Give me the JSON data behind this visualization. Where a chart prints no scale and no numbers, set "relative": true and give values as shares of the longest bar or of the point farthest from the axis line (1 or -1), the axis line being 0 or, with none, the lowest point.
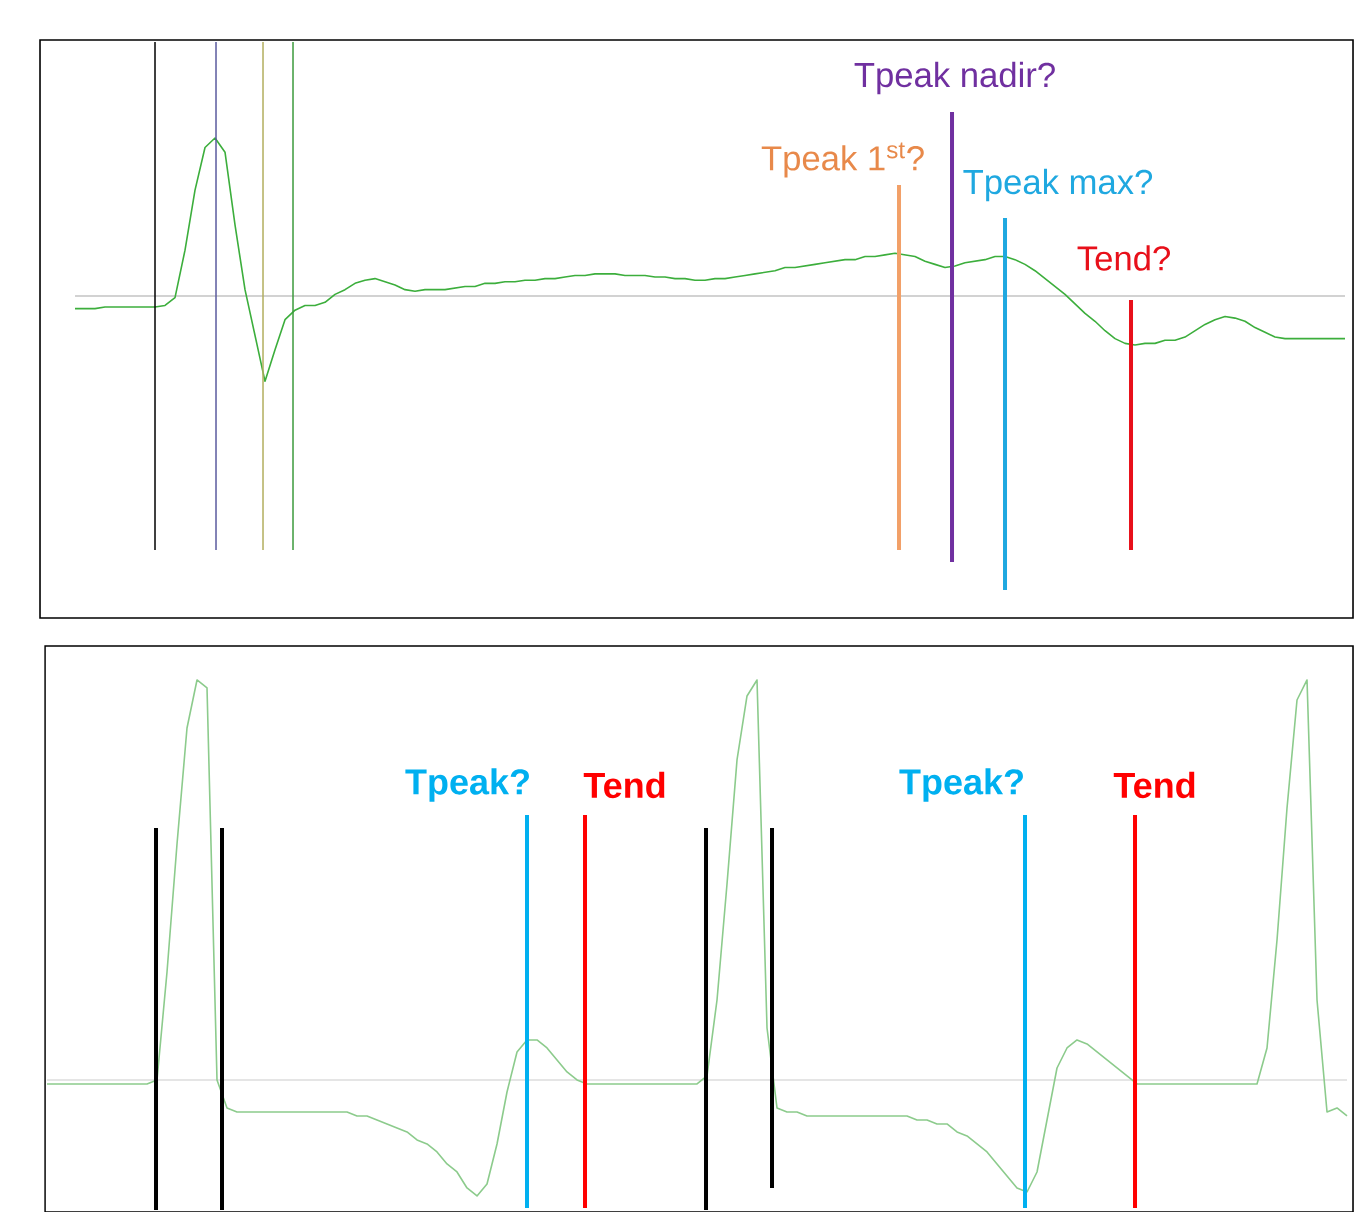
{
  "chart_data": [
    {
      "type": "line",
      "relative": true,
      "categories": [
        null,
        null,
        null,
        null,
        null,
        null,
        null,
        null,
        null,
        null,
        null,
        null,
        null,
        null,
        null,
        null,
        null,
        null,
        null,
        null,
        null,
        null,
        null,
        null,
        null,
        null,
        null,
        null,
        null,
        null,
        null,
        null,
        null,
        null,
        null,
        null,
        null,
        null,
        null,
        null,
        null,
        null,
        null,
        null,
        null,
        null,
        null,
        null,
        null,
        null,
        null,
        null,
        null,
        null,
        null,
        null,
        null,
        null,
        null,
        null,
        null,
        null,
        null,
        null,
        null,
        null,
        null,
        null,
        null,
        null,
        null,
        null,
        null,
        null,
        null,
        null,
        null,
        null,
        null,
        null,
        null,
        null,
        null,
        null,
        null,
        null,
        null,
        null,
        null,
        null,
        null,
        null,
        null,
        null,
        null,
        null,
        null,
        null,
        null,
        null,
        null,
        null,
        null,
        null,
        null,
        null,
        null,
        null,
        null,
        null,
        null,
        null,
        null,
        null,
        null,
        null,
        null,
        null,
        null,
        null,
        null,
        null,
        null,
        null,
        null,
        null,
        null,
        null
      ],
      "series": [
        {
          "color": "#3cae3c",
          "values": [
            -0.08,
            -0.08,
            -0.08,
            -0.07,
            -0.07,
            -0.07,
            -0.07,
            -0.07,
            -0.07,
            -0.06,
            -0.01,
            0.29,
            0.67,
            0.94,
            1,
            0.91,
            0.45,
            0.04,
            -0.25,
            -0.54,
            -0.34,
            -0.15,
            -0.09,
            -0.06,
            -0.06,
            -0.04,
            0.01,
            0.04,
            0.08,
            0.1,
            0.11,
            0.09,
            0.07,
            0.04,
            0.03,
            0.04,
            0.04,
            0.04,
            0.05,
            0.06,
            0.06,
            0.08,
            0.08,
            0.09,
            0.09,
            0.1,
            0.1,
            0.11,
            0.11,
            0.12,
            0.13,
            0.13,
            0.14,
            0.14,
            0.14,
            0.13,
            0.13,
            0.13,
            0.12,
            0.12,
            0.11,
            0.11,
            0.1,
            0.1,
            0.11,
            0.11,
            0.12,
            0.13,
            0.14,
            0.15,
            0.16,
            0.18,
            0.18,
            0.19,
            0.2,
            0.21,
            0.22,
            0.23,
            0.23,
            0.25,
            0.25,
            0.26,
            0.27,
            0.26,
            0.25,
            0.22,
            0.2,
            0.18,
            0.19,
            0.21,
            0.22,
            0.23,
            0.25,
            0.25,
            0.23,
            0.2,
            0.16,
            0.11,
            0.06,
            0.01,
            -0.05,
            -0.11,
            -0.16,
            -0.22,
            -0.27,
            -0.3,
            -0.31,
            -0.3,
            -0.3,
            -0.28,
            -0.28,
            -0.26,
            -0.22,
            -0.18,
            -0.15,
            -0.13,
            -0.14,
            -0.16,
            -0.2,
            -0.23,
            -0.26,
            -0.27,
            -0.27,
            -0.27,
            -0.27,
            -0.27,
            -0.27,
            -0.27
          ]
        }
      ],
      "annotations": [
        "Tpeak 1$^{st}$?",
        "Tpeak nadir?",
        "Tpeak max?",
        "Tend?"
      ]
    },
    {
      "type": "line",
      "relative": true,
      "categories": [
        null,
        null,
        null,
        null,
        null,
        null,
        null,
        null,
        null,
        null,
        null,
        null,
        null,
        null,
        null,
        null,
        null,
        null,
        null,
        null,
        null,
        null,
        null,
        null,
        null,
        null,
        null,
        null,
        null,
        null,
        null,
        null,
        null,
        null,
        null,
        null,
        null,
        null,
        null,
        null,
        null,
        null,
        null,
        null,
        null,
        null,
        null,
        null,
        null,
        null,
        null,
        null,
        null,
        null,
        null,
        null,
        null,
        null,
        null,
        null,
        null,
        null,
        null,
        null,
        null,
        null,
        null,
        null,
        null,
        null,
        null,
        null,
        null,
        null,
        null,
        null,
        null,
        null,
        null,
        null,
        null,
        null,
        null,
        null,
        null,
        null,
        null,
        null,
        null,
        null,
        null,
        null,
        null,
        null,
        null,
        null,
        null,
        null,
        null,
        null,
        null,
        null,
        null,
        null,
        null,
        null,
        null,
        null,
        null,
        null,
        null,
        null,
        null,
        null,
        null,
        null,
        null,
        null,
        null,
        null,
        null,
        null,
        null,
        null,
        null,
        null,
        null,
        null,
        null,
        null,
        null
      ],
      "series": [
        {
          "color": "#8ccb8c",
          "values": [
            -0.01,
            -0.01,
            -0.01,
            -0.01,
            -0.01,
            -0.01,
            -0.01,
            -0.01,
            -0.01,
            -0.01,
            -0.01,
            0,
            0.27,
            0.59,
            0.88,
            1,
            0.98,
            0,
            -0.07,
            -0.08,
            -0.08,
            -0.08,
            -0.08,
            -0.08,
            -0.08,
            -0.08,
            -0.08,
            -0.08,
            -0.08,
            -0.08,
            -0.08,
            -0.09,
            -0.09,
            -0.1,
            -0.11,
            -0.12,
            -0.13,
            -0.15,
            -0.16,
            -0.18,
            -0.21,
            -0.23,
            -0.27,
            -0.29,
            -0.26,
            -0.16,
            -0.03,
            0.07,
            0.1,
            0.1,
            0.08,
            0.05,
            0.02,
            0,
            -0.01,
            -0.01,
            -0.01,
            -0.01,
            -0.01,
            -0.01,
            -0.01,
            -0.01,
            -0.01,
            -0.01,
            -0.01,
            -0.01,
            0.01,
            0.2,
            0.49,
            0.8,
            0.96,
            1,
            0.13,
            -0.07,
            -0.08,
            -0.08,
            -0.09,
            -0.09,
            -0.09,
            -0.09,
            -0.09,
            -0.09,
            -0.09,
            -0.09,
            -0.09,
            -0.09,
            -0.09,
            -0.1,
            -0.1,
            -0.11,
            -0.11,
            -0.13,
            -0.14,
            -0.16,
            -0.18,
            -0.21,
            -0.24,
            -0.27,
            -0.28,
            -0.23,
            -0.1,
            0.03,
            0.08,
            0.1,
            0.09,
            0.07,
            0.05,
            0.03,
            0.01,
            -0.01,
            -0.01,
            -0.01,
            -0.01,
            -0.01,
            -0.01,
            -0.01,
            -0.01,
            -0.01,
            -0.01,
            -0.01,
            -0.01,
            -0.01,
            0.08,
            0.35,
            0.68,
            0.95,
            1,
            0.2,
            -0.08,
            -0.07,
            -0.09
          ]
        }
      ],
      "annotations": [
        "Tpeak?",
        "Tend",
        "Tpeak?",
        "Tend"
      ]
    }
  ]
}
